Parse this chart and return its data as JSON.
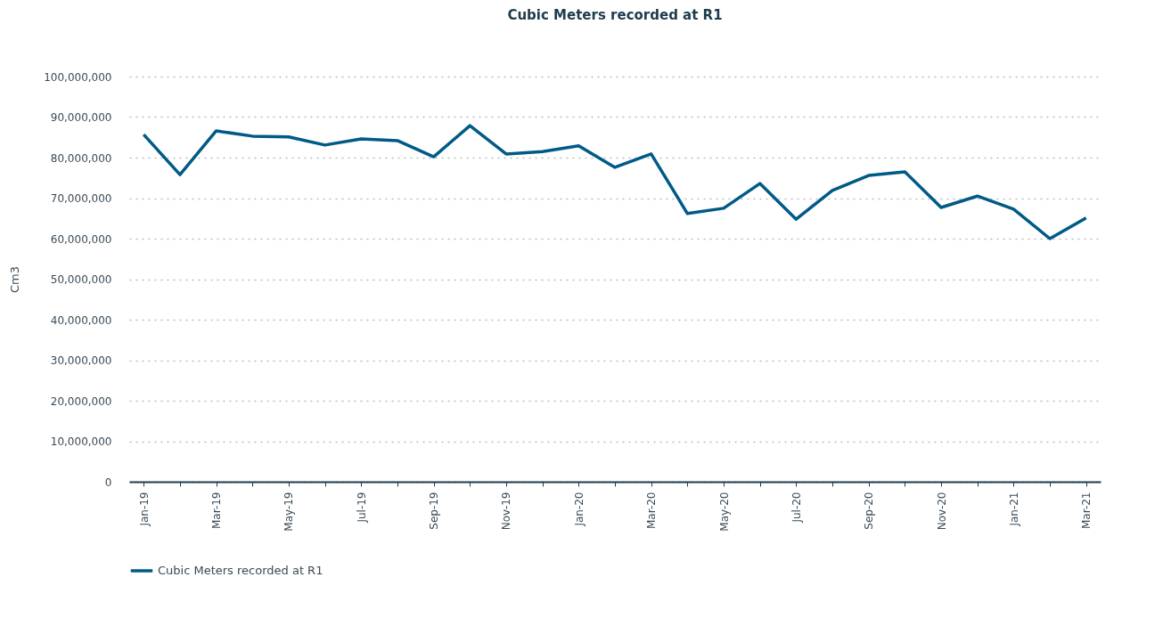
{
  "chart_data": {
    "type": "line",
    "title": "Cubic Meters recorded at R1",
    "ylabel": "Cm3",
    "categories": [
      "Jan-19",
      null,
      "Mar-19",
      null,
      "May-19",
      null,
      "Jul-19",
      null,
      "Sep-19",
      null,
      "Nov-19",
      null,
      "Jan-20",
      null,
      "Mar-20",
      null,
      "May-20",
      null,
      "Jul-20",
      null,
      "Sep-20",
      null,
      "Nov-20",
      null,
      "Jan-21",
      null,
      "Mar-21"
    ],
    "series": [
      {
        "name": "Cubic Meters recorded at R1",
        "color": "#005a87",
        "values": [
          85700000,
          75800000,
          86600000,
          85300000,
          85100000,
          83100000,
          84600000,
          84200000,
          80200000,
          87900000,
          80900000,
          81500000,
          82900000,
          77600000,
          80900000,
          66200000,
          67500000,
          73600000,
          64800000,
          71900000,
          75600000,
          76500000,
          67700000,
          70500000,
          67300000,
          60000000,
          65100000
        ]
      }
    ],
    "ylim": [
      0,
      100000000
    ],
    "yticks": [
      0,
      {
        "value": 10000000,
        "label": "10,000,000"
      },
      {
        "value": 20000000,
        "label": "20,000,000"
      },
      {
        "value": 30000000,
        "label": "30,000,000"
      },
      {
        "value": 40000000,
        "label": "40,000,000"
      },
      {
        "value": 50000000,
        "label": "50,000,000"
      },
      {
        "value": 60000000,
        "label": "60,000,000"
      },
      {
        "value": 70000000,
        "label": "70,000,000"
      },
      {
        "value": 80000000,
        "label": "80,000,000"
      },
      {
        "value": 90000000,
        "label": "90,000,000"
      },
      {
        "value": 100000000,
        "label": "100,000,000"
      }
    ],
    "grid": "y",
    "legend": "bottom",
    "marker": "none",
    "line_style": "solid"
  }
}
